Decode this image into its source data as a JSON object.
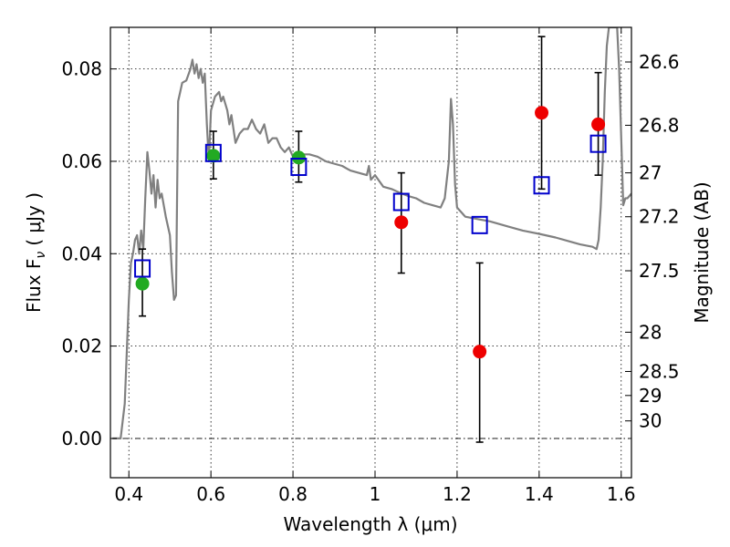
{
  "chart_data": {
    "type": "scatter",
    "xlabel": "Wavelength  λ (μm)",
    "ylabel": "Flux  F",
    "ylabel_sub": "ν",
    "ylabel_unit": "( μJy )",
    "ylabel_right": "Magnitude (AB)",
    "xlim": [
      0.355,
      1.625
    ],
    "ylim": [
      -0.0085,
      0.089
    ],
    "xticks": [
      0.4,
      0.6,
      0.8,
      1.0,
      1.2,
      1.4,
      1.6
    ],
    "xtick_labels": [
      "0.4",
      "0.6",
      "0.8",
      "1",
      "1.2",
      "1.4",
      "1.6"
    ],
    "yticks": [
      0.0,
      0.02,
      0.04,
      0.06,
      0.08
    ],
    "ytick_labels": [
      "0.00",
      "0.02",
      "0.04",
      "0.06",
      "0.08"
    ],
    "right_ticks": [
      {
        "label": "26.6",
        "flux": 0.0815
      },
      {
        "label": "26.8",
        "flux": 0.0678
      },
      {
        "label": "27",
        "flux": 0.0575
      },
      {
        "label": "27.2",
        "flux": 0.048
      },
      {
        "label": "27.5",
        "flux": 0.0363
      },
      {
        "label": "28",
        "flux": 0.023
      },
      {
        "label": "28.5",
        "flux": 0.0145
      },
      {
        "label": "29",
        "flux": 0.0093
      },
      {
        "label": "30",
        "flux": 0.0038
      }
    ],
    "grid": true,
    "zero_line": true,
    "model_color": "#808080",
    "model_spectrum": [
      [
        0.36,
        0.0
      ],
      [
        0.38,
        0.0
      ],
      [
        0.39,
        0.0075
      ],
      [
        0.4,
        0.03
      ],
      [
        0.405,
        0.038
      ],
      [
        0.41,
        0.04
      ],
      [
        0.415,
        0.043
      ],
      [
        0.42,
        0.044
      ],
      [
        0.425,
        0.04
      ],
      [
        0.43,
        0.045
      ],
      [
        0.435,
        0.041
      ],
      [
        0.44,
        0.052
      ],
      [
        0.445,
        0.062
      ],
      [
        0.45,
        0.058
      ],
      [
        0.455,
        0.053
      ],
      [
        0.46,
        0.057
      ],
      [
        0.465,
        0.05
      ],
      [
        0.47,
        0.056
      ],
      [
        0.475,
        0.052
      ],
      [
        0.48,
        0.053
      ],
      [
        0.49,
        0.048
      ],
      [
        0.5,
        0.044
      ],
      [
        0.505,
        0.036
      ],
      [
        0.51,
        0.03
      ],
      [
        0.515,
        0.031
      ],
      [
        0.52,
        0.073
      ],
      [
        0.53,
        0.077
      ],
      [
        0.54,
        0.0775
      ],
      [
        0.55,
        0.08
      ],
      [
        0.555,
        0.082
      ],
      [
        0.56,
        0.079
      ],
      [
        0.565,
        0.081
      ],
      [
        0.57,
        0.078
      ],
      [
        0.575,
        0.08
      ],
      [
        0.58,
        0.077
      ],
      [
        0.585,
        0.079
      ],
      [
        0.59,
        0.068
      ],
      [
        0.595,
        0.06
      ],
      [
        0.6,
        0.071
      ],
      [
        0.61,
        0.074
      ],
      [
        0.62,
        0.075
      ],
      [
        0.625,
        0.073
      ],
      [
        0.63,
        0.074
      ],
      [
        0.64,
        0.071
      ],
      [
        0.645,
        0.068
      ],
      [
        0.65,
        0.07
      ],
      [
        0.66,
        0.064
      ],
      [
        0.67,
        0.066
      ],
      [
        0.68,
        0.067
      ],
      [
        0.69,
        0.067
      ],
      [
        0.7,
        0.069
      ],
      [
        0.71,
        0.067
      ],
      [
        0.72,
        0.066
      ],
      [
        0.73,
        0.068
      ],
      [
        0.74,
        0.064
      ],
      [
        0.75,
        0.065
      ],
      [
        0.76,
        0.065
      ],
      [
        0.77,
        0.063
      ],
      [
        0.78,
        0.062
      ],
      [
        0.79,
        0.063
      ],
      [
        0.8,
        0.061
      ],
      [
        0.82,
        0.0615
      ],
      [
        0.84,
        0.0615
      ],
      [
        0.86,
        0.061
      ],
      [
        0.88,
        0.06
      ],
      [
        0.9,
        0.0595
      ],
      [
        0.92,
        0.059
      ],
      [
        0.94,
        0.058
      ],
      [
        0.96,
        0.0575
      ],
      [
        0.98,
        0.057
      ],
      [
        0.985,
        0.059
      ],
      [
        0.99,
        0.056
      ],
      [
        1.0,
        0.057
      ],
      [
        1.02,
        0.0545
      ],
      [
        1.04,
        0.054
      ],
      [
        1.06,
        0.0532
      ],
      [
        1.08,
        0.0525
      ],
      [
        1.1,
        0.052
      ],
      [
        1.12,
        0.051
      ],
      [
        1.14,
        0.0505
      ],
      [
        1.16,
        0.05
      ],
      [
        1.17,
        0.052
      ],
      [
        1.18,
        0.06
      ],
      [
        1.185,
        0.0735
      ],
      [
        1.19,
        0.068
      ],
      [
        1.195,
        0.055
      ],
      [
        1.2,
        0.05
      ],
      [
        1.22,
        0.048
      ],
      [
        1.25,
        0.0475
      ],
      [
        1.28,
        0.047
      ],
      [
        1.32,
        0.046
      ],
      [
        1.36,
        0.045
      ],
      [
        1.4,
        0.0443
      ],
      [
        1.44,
        0.0435
      ],
      [
        1.48,
        0.0425
      ],
      [
        1.5,
        0.042
      ],
      [
        1.53,
        0.0415
      ],
      [
        1.54,
        0.041
      ],
      [
        1.545,
        0.043
      ],
      [
        1.55,
        0.05
      ],
      [
        1.555,
        0.06
      ],
      [
        1.56,
        0.075
      ],
      [
        1.565,
        0.085
      ],
      [
        1.57,
        0.089
      ],
      [
        1.59,
        0.089
      ],
      [
        1.595,
        0.08
      ],
      [
        1.6,
        0.065
      ],
      [
        1.605,
        0.0505
      ],
      [
        1.61,
        0.052
      ],
      [
        1.615,
        0.052
      ],
      [
        1.625,
        0.053
      ]
    ],
    "model_photometry": {
      "color": "#0000cc",
      "points": [
        {
          "x": 0.433,
          "y": 0.0368
        },
        {
          "x": 0.606,
          "y": 0.0618
        },
        {
          "x": 0.814,
          "y": 0.0588
        },
        {
          "x": 1.064,
          "y": 0.0512
        },
        {
          "x": 1.255,
          "y": 0.0462
        },
        {
          "x": 1.406,
          "y": 0.0548
        },
        {
          "x": 1.544,
          "y": 0.0638
        }
      ]
    },
    "observed_optical": {
      "color": "#22aa22",
      "points": [
        {
          "x": 0.433,
          "y": 0.0335,
          "err_lo": 0.0265,
          "err_hi": 0.041
        },
        {
          "x": 0.606,
          "y": 0.0612,
          "err_lo": 0.0562,
          "err_hi": 0.0665
        },
        {
          "x": 0.814,
          "y": 0.0608,
          "err_lo": 0.0555,
          "err_hi": 0.0665
        }
      ]
    },
    "observed_nir": {
      "color": "#ee0000",
      "points": [
        {
          "x": 1.064,
          "y": 0.0468,
          "err_lo": 0.0358,
          "err_hi": 0.0575
        },
        {
          "x": 1.255,
          "y": 0.0188,
          "err_lo": -0.0008,
          "err_hi": 0.038
        },
        {
          "x": 1.406,
          "y": 0.0705,
          "err_lo": 0.054,
          "err_hi": 0.087
        },
        {
          "x": 1.544,
          "y": 0.068,
          "err_lo": 0.057,
          "err_hi": 0.0792
        }
      ]
    }
  }
}
